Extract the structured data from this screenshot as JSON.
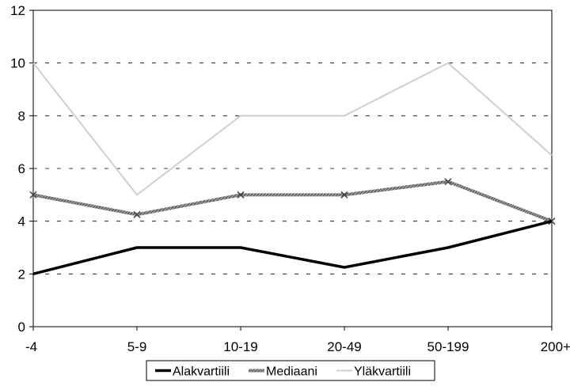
{
  "chart_data": {
    "type": "line",
    "title": "",
    "xlabel": "",
    "ylabel": "",
    "categories": [
      "-4",
      "5-9",
      "10-19",
      "20-49",
      "50-199",
      "200+"
    ],
    "ylim": [
      0,
      12
    ],
    "yticks": [
      0,
      2,
      4,
      6,
      8,
      10,
      12
    ],
    "grid": "horizontal-dashed",
    "legend": "bottom",
    "series": [
      {
        "name": "Alakvartiili",
        "values": [
          2,
          3,
          3,
          2.25,
          3,
          4
        ],
        "color": "#000000",
        "style": "thick-solid"
      },
      {
        "name": "Mediaani",
        "values": [
          5,
          4.25,
          5,
          5,
          5.5,
          4
        ],
        "color": "#888888",
        "style": "thick-hatched"
      },
      {
        "name": "Yläkvartiili",
        "values": [
          10,
          5,
          8,
          8,
          10,
          6.5
        ],
        "color": "#d0d0d0",
        "style": "light"
      }
    ]
  }
}
